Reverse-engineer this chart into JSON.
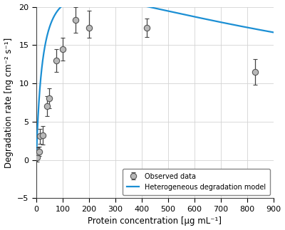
{
  "observed_x": [
    2,
    5,
    10,
    15,
    25,
    40,
    50,
    75,
    100,
    150,
    200,
    420,
    830
  ],
  "observed_y": [
    0.3,
    1.0,
    1.1,
    3.1,
    3.2,
    7.0,
    8.1,
    13.0,
    14.5,
    18.3,
    17.3,
    17.3,
    11.5
  ],
  "observed_yerr_low": [
    0.5,
    0.6,
    0.6,
    1.0,
    1.2,
    1.3,
    1.3,
    1.5,
    1.5,
    1.7,
    1.3,
    1.2,
    1.7
  ],
  "observed_yerr_high": [
    0.5,
    0.6,
    0.6,
    1.0,
    1.2,
    1.3,
    1.3,
    1.5,
    1.5,
    1.7,
    2.2,
    1.2,
    1.7
  ],
  "model_Vmax": 26.5,
  "model_Km": 25.0,
  "model_Ki": 1600.0,
  "line_color": "#1B8FD4",
  "marker_facecolor": "#B8B8B8",
  "marker_edgecolor": "#555555",
  "marker_size": 6,
  "errorbar_color": "#444444",
  "xlabel": "Protein concentration [μg mL⁻¹]",
  "ylabel": "Degradation rate [ng cm⁻² s⁻¹]",
  "xlim": [
    0,
    900
  ],
  "ylim": [
    -5,
    20
  ],
  "xticks": [
    0,
    100,
    200,
    300,
    400,
    500,
    600,
    700,
    800,
    900
  ],
  "yticks": [
    -5,
    0,
    5,
    10,
    15,
    20
  ],
  "legend_label_observed": "Observed data",
  "legend_label_model": "Heterogeneous degradation model",
  "grid_color": "#D3D3D3",
  "bg_color": "#FFFFFF"
}
